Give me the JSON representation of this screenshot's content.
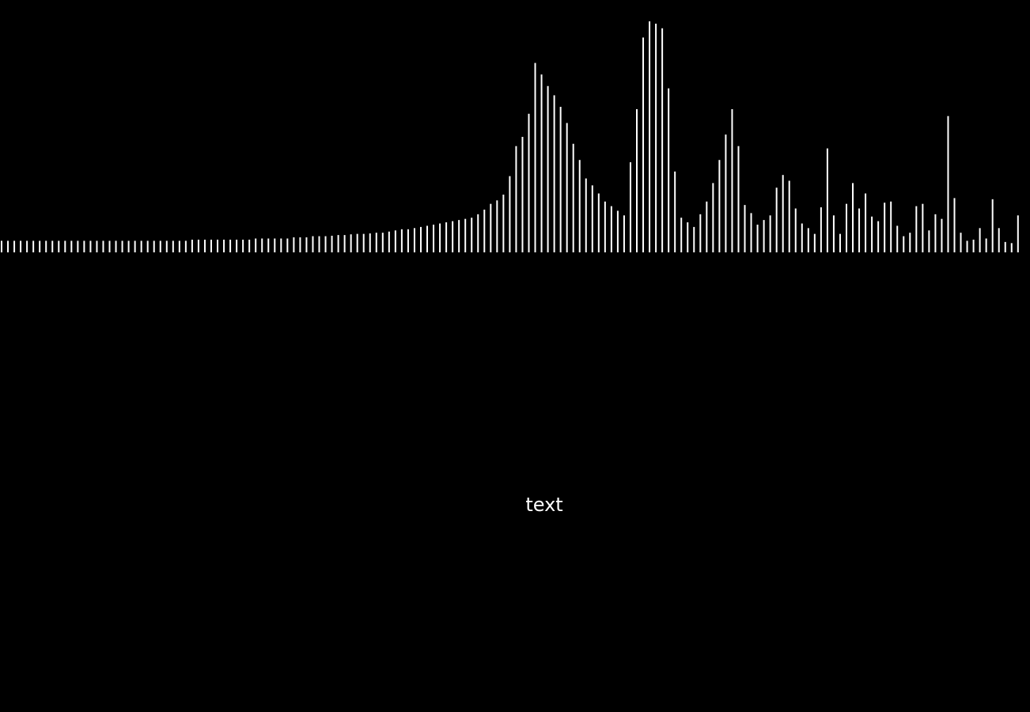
{
  "caption": "text",
  "colors": {
    "background": "#000000",
    "bar": "#ffffff"
  },
  "visualizer": {
    "type": "bar",
    "max_level": 1.0,
    "levels": [
      0.05,
      0.05,
      0.05,
      0.05,
      0.05,
      0.05,
      0.05,
      0.05,
      0.05,
      0.05,
      0.05,
      0.05,
      0.05,
      0.05,
      0.05,
      0.05,
      0.05,
      0.05,
      0.05,
      0.05,
      0.05,
      0.05,
      0.05,
      0.05,
      0.05,
      0.05,
      0.05,
      0.05,
      0.05,
      0.05,
      0.055,
      0.055,
      0.055,
      0.055,
      0.055,
      0.055,
      0.055,
      0.055,
      0.055,
      0.055,
      0.06,
      0.06,
      0.06,
      0.06,
      0.06,
      0.06,
      0.065,
      0.065,
      0.065,
      0.07,
      0.07,
      0.07,
      0.072,
      0.075,
      0.075,
      0.078,
      0.08,
      0.08,
      0.082,
      0.085,
      0.085,
      0.09,
      0.095,
      0.1,
      0.1,
      0.105,
      0.11,
      0.115,
      0.12,
      0.125,
      0.13,
      0.135,
      0.14,
      0.145,
      0.15,
      0.165,
      0.185,
      0.21,
      0.225,
      0.25,
      0.33,
      0.46,
      0.5,
      0.6,
      0.82,
      0.77,
      0.72,
      0.68,
      0.63,
      0.56,
      0.47,
      0.4,
      0.32,
      0.29,
      0.255,
      0.22,
      0.2,
      0.18,
      0.16,
      0.39,
      0.62,
      0.93,
      1.0,
      0.99,
      0.97,
      0.71,
      0.35,
      0.15,
      0.13,
      0.11,
      0.165,
      0.22,
      0.3,
      0.4,
      0.51,
      0.62,
      0.46,
      0.205,
      0.17,
      0.12,
      0.14,
      0.16,
      0.28,
      0.335,
      0.31,
      0.19,
      0.125,
      0.105,
      0.08,
      0.195,
      0.45,
      0.16,
      0.08,
      0.21,
      0.3,
      0.19,
      0.255,
      0.155,
      0.135,
      0.215,
      0.22,
      0.115,
      0.07,
      0.085,
      0.2,
      0.21,
      0.095,
      0.165,
      0.145,
      0.59,
      0.235,
      0.085,
      0.05,
      0.055,
      0.105,
      0.06,
      0.23,
      0.105,
      0.045,
      0.04,
      0.16
    ]
  }
}
